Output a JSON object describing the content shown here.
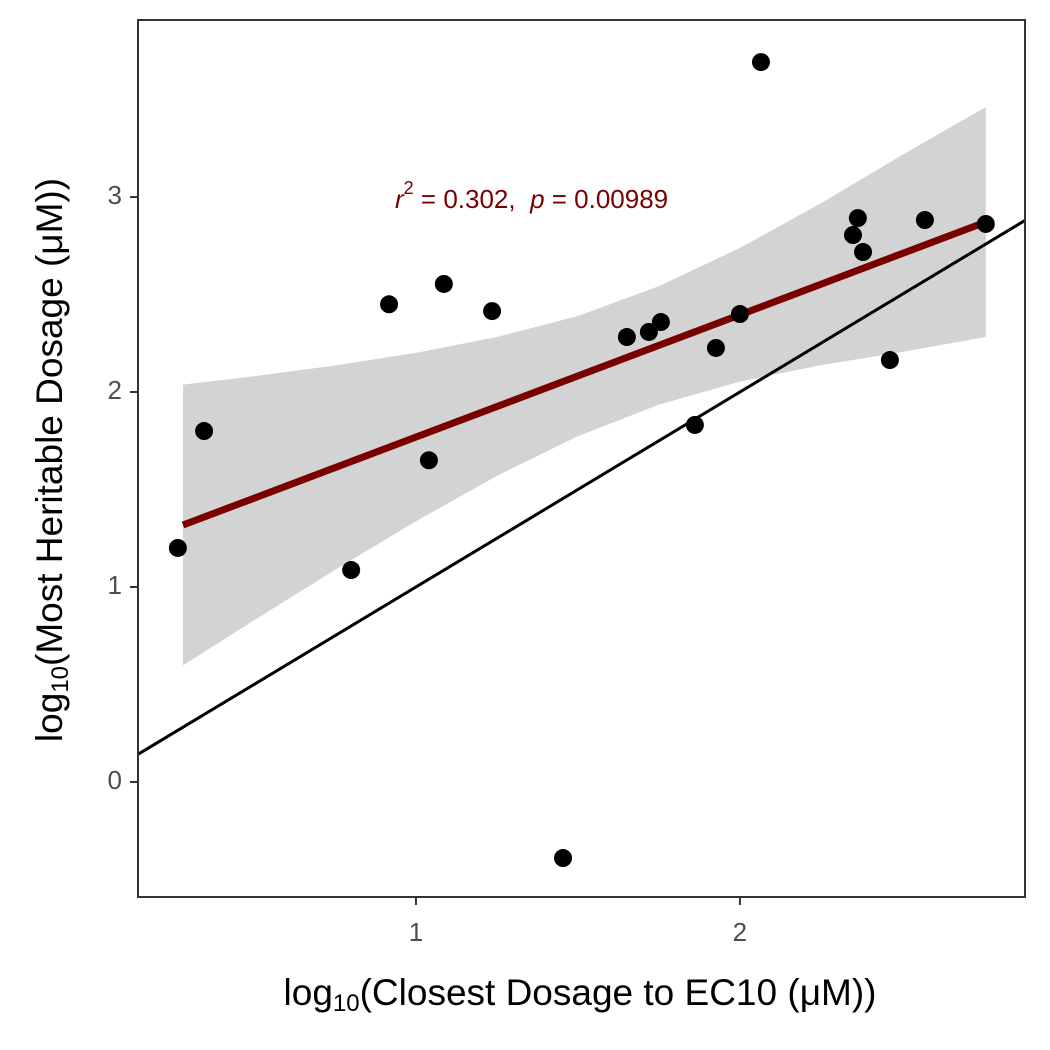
{
  "chart_data": {
    "type": "scatter",
    "x_title": {
      "prefix": "log",
      "subscript": "10",
      "body": "(Closest Dosage to EC10 (μM))"
    },
    "y_title": {
      "prefix": "log",
      "subscript": "10",
      "body": "(Most Heritable Dosage (μM))"
    },
    "annotation": {
      "r": "r",
      "exponent": "2",
      "r_text": " = 0.302,  ",
      "p": "p",
      "p_text": " = 0.00989"
    },
    "x": [
      0.265,
      0.346,
      0.8,
      0.917,
      1.04,
      1.086,
      1.235,
      1.454,
      1.651,
      1.719,
      1.756,
      1.861,
      1.926,
      2.0,
      2.065,
      2.349,
      2.364,
      2.38,
      2.463,
      2.571,
      2.759
    ],
    "values": [
      1.2,
      1.8,
      1.087,
      2.45,
      1.65,
      2.554,
      2.415,
      -0.39,
      2.282,
      2.308,
      2.359,
      1.831,
      2.226,
      2.4,
      3.692,
      2.805,
      2.892,
      2.718,
      2.164,
      2.882,
      2.862
    ],
    "color": "#000000",
    "fit": {
      "x": [
        0.281,
        2.759
      ],
      "y": [
        1.318,
        2.872
      ],
      "color": "#7a0000"
    },
    "band": {
      "x": [
        0.281,
        0.5,
        0.75,
        1.0,
        1.25,
        1.5,
        1.75,
        2.0,
        2.25,
        2.5,
        2.759
      ],
      "lower": [
        0.598,
        0.829,
        1.088,
        1.337,
        1.57,
        1.774,
        1.935,
        2.053,
        2.138,
        2.205,
        2.282
      ],
      "upper": [
        2.038,
        2.081,
        2.136,
        2.201,
        2.282,
        2.39,
        2.543,
        2.739,
        2.968,
        3.215,
        3.462
      ],
      "color": "#d3d3d3"
    },
    "identity_line": true,
    "xlim": [
      0.142,
      2.88
    ],
    "ylim": [
      -0.59,
      3.908
    ],
    "xticks": [
      1,
      2
    ],
    "yticks": [
      0,
      1,
      2,
      3
    ]
  }
}
